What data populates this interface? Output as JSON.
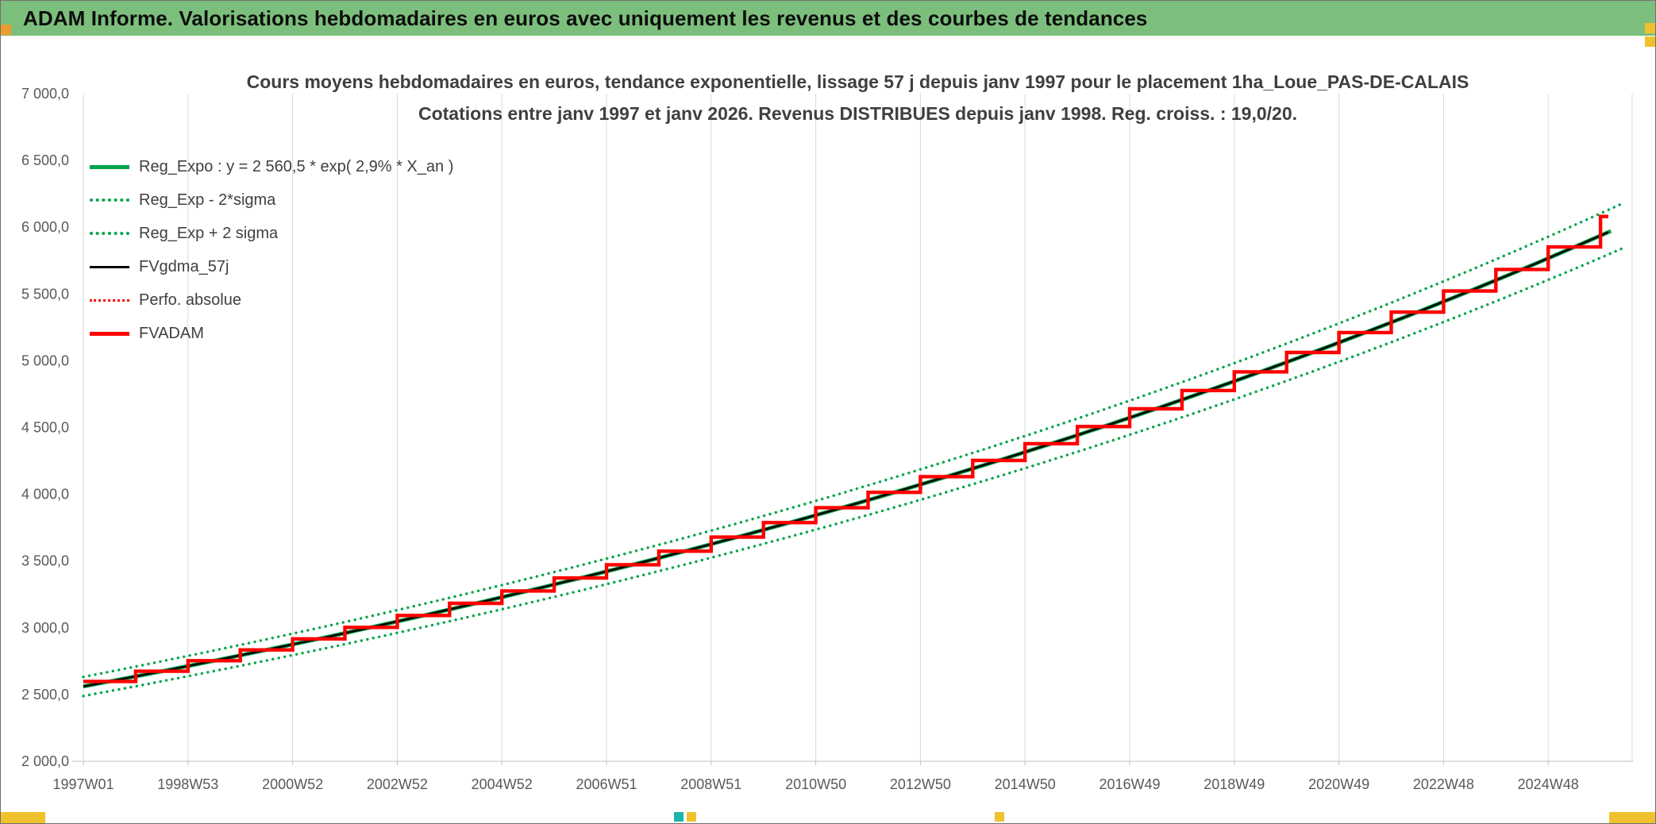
{
  "window": {
    "header_title": "ADAM Informe. Valorisations hebdomadaires en euros avec uniquement les revenus et des courbes de tendances"
  },
  "chart": {
    "title_line1": "Cours moyens hebdomadaires en euros, tendance exponentielle, lissage 57 j depuis janv 1997 pour le placement 1ha_Loue_PAS-DE-CALAIS",
    "title_line2": "Cotations entre janv 1997 et janv 2026. Revenus DISTRIBUES depuis janv 1998. Reg. croiss. : 19,0/20."
  },
  "legend": {
    "items": [
      {
        "label": "Reg_Expo : y = 2 560,5 * exp( 2,9% *  X_an )",
        "color": "#00A44A",
        "style": "solid-thick"
      },
      {
        "label": "Reg_Exp - 2*sigma",
        "color": "#00A44A",
        "style": "dotted"
      },
      {
        "label": "Reg_Exp + 2 sigma",
        "color": "#00A44A",
        "style": "dotted"
      },
      {
        "label": "FVgdma_57j",
        "color": "#000000",
        "style": "solid"
      },
      {
        "label": "Perfo. absolue",
        "color": "#FF0000",
        "style": "dotted-thin"
      },
      {
        "label": "FVADAM",
        "color": "#FF0000",
        "style": "solid-thick"
      }
    ]
  },
  "chart_data": {
    "type": "line",
    "title": "Cours moyens hebdomadaires en euros, tendance exponentielle, lissage 57 j depuis janv 1997 pour le placement 1ha_Loue_PAS-DE-CALAIS",
    "subtitle": "Cotations entre janv 1997 et janv 2026. Revenus DISTRIBUES depuis janv 1998. Reg. croiss. : 19,0/20.",
    "grid": "vertical-only",
    "legend_position": "top-left-inside",
    "x_axis": {
      "unit": "ISO week (years since janv 1997)",
      "tick_labels": [
        "1997W01",
        "1998W53",
        "2000W52",
        "2002W52",
        "2004W52",
        "2006W51",
        "2008W51",
        "2010W50",
        "2012W50",
        "2014W50",
        "2016W49",
        "2018W49",
        "2020W49",
        "2022W48",
        "2024W48"
      ],
      "tick_year_offsets": [
        0,
        2,
        4,
        6,
        8,
        10,
        12,
        14,
        16,
        18,
        20,
        22,
        24,
        26,
        28
      ]
    },
    "y_axis": {
      "lim": [
        2000,
        7000
      ],
      "tick_values": [
        2000,
        2500,
        3000,
        3500,
        4000,
        4500,
        5000,
        5500,
        6000,
        6500,
        7000
      ],
      "tick_labels": [
        "2 000,0",
        "2 500,0",
        "3 000,0",
        "3 500,0",
        "4 000,0",
        "4 500,0",
        "5 000,0",
        "5 500,0",
        "6 000,0",
        "6 500,0",
        "7 000,0"
      ]
    },
    "regression": {
      "formula": "y = 2 560,5 * exp( 2,9% * X_an )",
      "coefficient": 2560.5,
      "annual_rate": 0.029,
      "x_start_year": 1997,
      "x_end_year": 2026
    },
    "sigma_band_factor": 0.028,
    "reg_values_by_year": {
      "years_start": 1997,
      "values": [
        2560.5,
        2635.8,
        2713.4,
        2793.2,
        2875.4,
        2960.1,
        3047.1,
        3136.8,
        3229.1,
        3324.1,
        3421.9,
        3522.6,
        3626.3,
        3733.0,
        3842.9,
        3955.9,
        4072.3,
        4192.1,
        4315.5,
        4442.5,
        4573.2,
        4707.8,
        4846.3,
        4988.9,
        5135.7,
        5286.9,
        5442.4,
        5602.6,
        5767.4,
        5937.1
      ]
    },
    "fvadam_steps": {
      "years_start": 1997,
      "values": [
        2598,
        2674,
        2753,
        2834,
        2917,
        3003,
        3092,
        3183,
        3276,
        3373,
        3472,
        3574,
        3679,
        3788,
        3899,
        4014,
        4132,
        4253,
        4379,
        4507,
        4640,
        4777,
        4917,
        5062,
        5211,
        5364,
        5522,
        5684,
        5852
      ]
    },
    "fvadam_final_spike": {
      "x_years_from_start": 29.0,
      "value": 6080
    },
    "series": [
      {
        "name": "Reg_Expo",
        "type": "exponential",
        "color": "#00A44A",
        "style": "solid",
        "width": 5
      },
      {
        "name": "Reg_Exp - 2*sigma",
        "type": "exponential_band",
        "factor": -0.028,
        "color": "#00A44A",
        "style": "dotted"
      },
      {
        "name": "Reg_Exp + 2 sigma",
        "type": "exponential_band",
        "factor": 0.028,
        "color": "#00A44A",
        "style": "dotted"
      },
      {
        "name": "FVgdma_57j",
        "type": "smoothed_moving_average",
        "color": "#000000",
        "style": "solid",
        "width": 2.6
      },
      {
        "name": "Perfo. absolue",
        "type": "steps",
        "color": "#FF0000",
        "style": "dotted",
        "width": 2
      },
      {
        "name": "FVADAM",
        "type": "steps",
        "color": "#FF0000",
        "style": "solid",
        "width": 4.4
      }
    ]
  },
  "colors": {
    "green": "#00A44A",
    "red": "#FF0000",
    "black": "#000000",
    "header_green": "#7CBF7C",
    "accent_gold": "#F0C12E",
    "accent_orange": "#ED9D2D",
    "teal": "#1FB5AD",
    "grid": "#D9D9D9",
    "axis_line": "#BFBFBF",
    "axis_text": "#595959",
    "title_text": "#3F3F3F"
  }
}
